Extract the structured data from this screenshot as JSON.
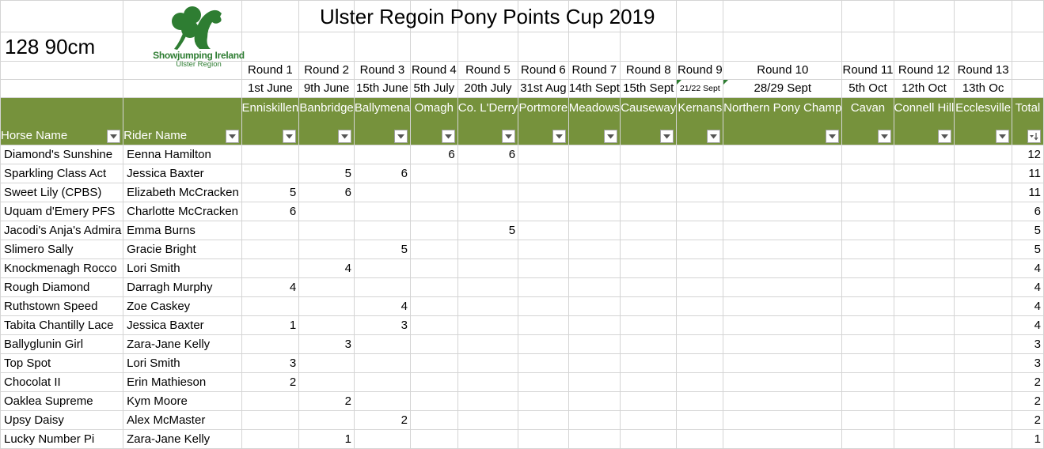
{
  "sheet": {
    "title": "Ulster Regoin Pony Points Cup 2019",
    "class_label": "128 90cm",
    "logo": {
      "name": "Showjumping Ireland",
      "subtitle": "Ulster Region",
      "icon": "shamrock-horse-logo-icon"
    },
    "header_color": "#76923c",
    "columns": {
      "horse": "Horse Name",
      "rider": "Rider Name",
      "total": "Total"
    },
    "rounds": [
      {
        "round": "Round 1",
        "date": "1st June",
        "venue": "Enniskillen"
      },
      {
        "round": "Round 2",
        "date": "9th June",
        "venue": "Banbridge"
      },
      {
        "round": "Round 3",
        "date": "15th June",
        "venue": "Ballymena"
      },
      {
        "round": "Round 4",
        "date": "5th July",
        "venue": "Omagh"
      },
      {
        "round": "Round 5",
        "date": "20th July",
        "venue": "Co. L'Derry"
      },
      {
        "round": "Round 6",
        "date": "31st Aug",
        "venue": "Portmore"
      },
      {
        "round": "Round 7",
        "date": "14th Sept",
        "venue": "Meadows"
      },
      {
        "round": "Round 8",
        "date": "15th Sept",
        "venue": "Causeway"
      },
      {
        "round": "Round 9",
        "date": "21/22 Sept",
        "venue": "Kernans"
      },
      {
        "round": "Round 10",
        "date": "28/29 Sept",
        "venue": "Northern Pony Champ"
      },
      {
        "round": "Round 11",
        "date": "5th Oct",
        "venue": "Cavan"
      },
      {
        "round": "Round 12",
        "date": "12th Oct",
        "venue": "Connell Hill"
      },
      {
        "round": "Round 13",
        "date": "13th Oc",
        "venue": "Ecclesville"
      }
    ],
    "rows": [
      {
        "horse": "Diamond's Sunshine",
        "rider": "Eenna Hamilton",
        "points": [
          "",
          "",
          "",
          "6",
          "6",
          "",
          "",
          "",
          "",
          "",
          "",
          "",
          ""
        ],
        "total": "12"
      },
      {
        "horse": "Sparkling Class Act",
        "rider": "Jessica Baxter",
        "points": [
          "",
          "5",
          "6",
          "",
          "",
          "",
          "",
          "",
          "",
          "",
          "",
          "",
          ""
        ],
        "total": "11"
      },
      {
        "horse": "Sweet Lily (CPBS)",
        "rider": "Elizabeth McCracken",
        "points": [
          "5",
          "6",
          "",
          "",
          "",
          "",
          "",
          "",
          "",
          "",
          "",
          "",
          ""
        ],
        "total": "11"
      },
      {
        "horse": "Uquam d'Emery PFS",
        "rider": "Charlotte McCracken",
        "points": [
          "6",
          "",
          "",
          "",
          "",
          "",
          "",
          "",
          "",
          "",
          "",
          "",
          ""
        ],
        "total": "6"
      },
      {
        "horse": "Jacodi's Anja's Admira",
        "rider": "Emma Burns",
        "points": [
          "",
          "",
          "",
          "",
          "5",
          "",
          "",
          "",
          "",
          "",
          "",
          "",
          ""
        ],
        "total": "5"
      },
      {
        "horse": "Slimero Sally",
        "rider": "Gracie Bright",
        "points": [
          "",
          "",
          "5",
          "",
          "",
          "",
          "",
          "",
          "",
          "",
          "",
          "",
          ""
        ],
        "total": "5"
      },
      {
        "horse": "Knockmenagh Rocco",
        "rider": "Lori Smith",
        "points": [
          "",
          "4",
          "",
          "",
          "",
          "",
          "",
          "",
          "",
          "",
          "",
          "",
          ""
        ],
        "total": "4"
      },
      {
        "horse": "Rough Diamond",
        "rider": "Darragh Murphy",
        "points": [
          "4",
          "",
          "",
          "",
          "",
          "",
          "",
          "",
          "",
          "",
          "",
          "",
          ""
        ],
        "total": "4"
      },
      {
        "horse": "Ruthstown Speed",
        "rider": "Zoe Caskey",
        "points": [
          "",
          "",
          "4",
          "",
          "",
          "",
          "",
          "",
          "",
          "",
          "",
          "",
          ""
        ],
        "total": "4"
      },
      {
        "horse": "Tabita Chantilly Lace",
        "rider": "Jessica Baxter",
        "points": [
          "1",
          "",
          "3",
          "",
          "",
          "",
          "",
          "",
          "",
          "",
          "",
          "",
          ""
        ],
        "total": "4"
      },
      {
        "horse": "Ballyglunin Girl",
        "rider": "Zara-Jane Kelly",
        "points": [
          "",
          "3",
          "",
          "",
          "",
          "",
          "",
          "",
          "",
          "",
          "",
          "",
          ""
        ],
        "total": "3"
      },
      {
        "horse": "Top Spot",
        "rider": "Lori Smith",
        "points": [
          "3",
          "",
          "",
          "",
          "",
          "",
          "",
          "",
          "",
          "",
          "",
          "",
          ""
        ],
        "total": "3"
      },
      {
        "horse": "Chocolat II",
        "rider": "Erin Mathieson",
        "points": [
          "2",
          "",
          "",
          "",
          "",
          "",
          "",
          "",
          "",
          "",
          "",
          "",
          ""
        ],
        "total": "2"
      },
      {
        "horse": "Oaklea Supreme",
        "rider": "Kym Moore",
        "points": [
          "",
          "2",
          "",
          "",
          "",
          "",
          "",
          "",
          "",
          "",
          "",
          "",
          ""
        ],
        "total": "2"
      },
      {
        "horse": "Upsy Daisy",
        "rider": "Alex McMaster",
        "points": [
          "",
          "",
          "2",
          "",
          "",
          "",
          "",
          "",
          "",
          "",
          "",
          "",
          ""
        ],
        "total": "2"
      },
      {
        "horse": "Lucky Number Pi",
        "rider": "Zara-Jane Kelly",
        "points": [
          "",
          "1",
          "",
          "",
          "",
          "",
          "",
          "",
          "",
          "",
          "",
          "",
          ""
        ],
        "total": "1"
      }
    ],
    "filter_icon": "dropdown-arrow-icon",
    "sort_icon": "sort-descending-filter-icon"
  }
}
